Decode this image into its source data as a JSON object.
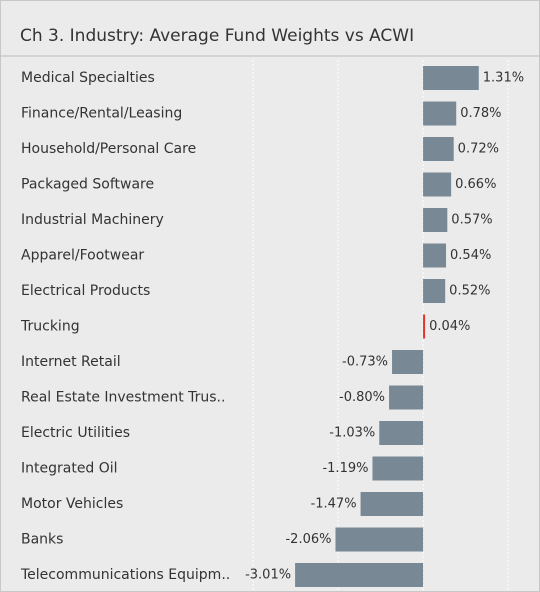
{
  "chart_data": {
    "type": "hbar",
    "title": "Ch 3. Industry:  Average Fund Weights vs ACWI",
    "categories": [
      "Medical Specialties",
      "Finance/Rental/Leasing",
      "Household/Personal Care",
      "Packaged Software",
      "Industrial Machinery",
      "Apparel/Footwear",
      "Electrical Products",
      "Trucking",
      "Internet Retail",
      "Real Estate Investment Trus..",
      "Electric Utilities",
      "Integrated Oil",
      "Motor Vehicles",
      "Banks",
      "Telecommunications Equipm.."
    ],
    "values": [
      1.31,
      0.78,
      0.72,
      0.66,
      0.57,
      0.54,
      0.52,
      0.04,
      -0.73,
      -0.8,
      -1.03,
      -1.19,
      -1.47,
      -2.06,
      -3.01
    ],
    "value_labels": [
      "1.31%",
      "0.78%",
      "0.72%",
      "0.66%",
      "0.57%",
      "0.54%",
      "0.52%",
      "0.04%",
      "-0.73%",
      "-0.80%",
      "-1.03%",
      "-1.19%",
      "-1.47%",
      "-2.06%",
      "-3.01%"
    ],
    "colors": [
      "#788995",
      "#788995",
      "#788995",
      "#788995",
      "#788995",
      "#788995",
      "#788995",
      "#e0342c",
      "#788995",
      "#788995",
      "#788995",
      "#788995",
      "#788995",
      "#788995",
      "#788995"
    ],
    "xlim": [
      -4,
      2.75
    ],
    "xticks": [
      -4,
      -2,
      0,
      2
    ],
    "grid": true
  }
}
